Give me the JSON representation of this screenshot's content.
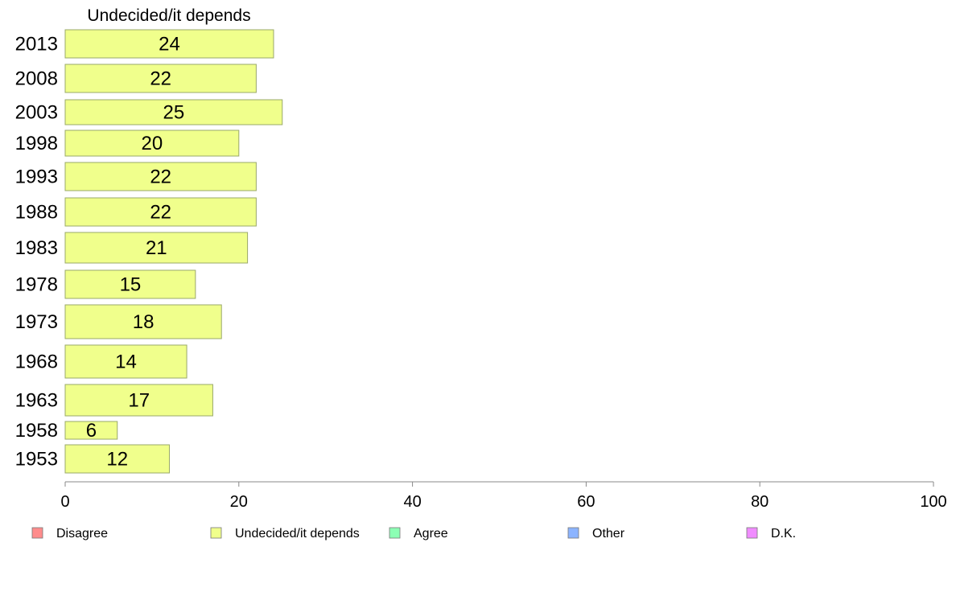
{
  "chart_data": {
    "type": "bar",
    "orientation": "horizontal",
    "title": "Undecided/it depends",
    "categories": [
      "2013",
      "2008",
      "2003",
      "1998",
      "1993",
      "1988",
      "1983",
      "1978",
      "1973",
      "1968",
      "1963",
      "1958",
      "1953"
    ],
    "series": [
      {
        "name": "Undecided/it depends",
        "color": "#f0ff8c",
        "values": [
          24,
          22,
          25,
          20,
          22,
          22,
          21,
          15,
          18,
          14,
          17,
          6,
          12
        ]
      }
    ],
    "xlim": [
      0,
      100
    ],
    "xticks": [
      0,
      20,
      40,
      60,
      80,
      100
    ],
    "grid": false,
    "legend_position": "bottom",
    "legend": [
      {
        "label": "Disagree",
        "color": "#ff8c8c"
      },
      {
        "label": "Undecided/it depends",
        "color": "#f0ff8c"
      },
      {
        "label": "Agree",
        "color": "#8cffb4"
      },
      {
        "label": "Other",
        "color": "#8cb4ff"
      },
      {
        "label": "D.K.",
        "color": "#f08cff"
      }
    ]
  }
}
